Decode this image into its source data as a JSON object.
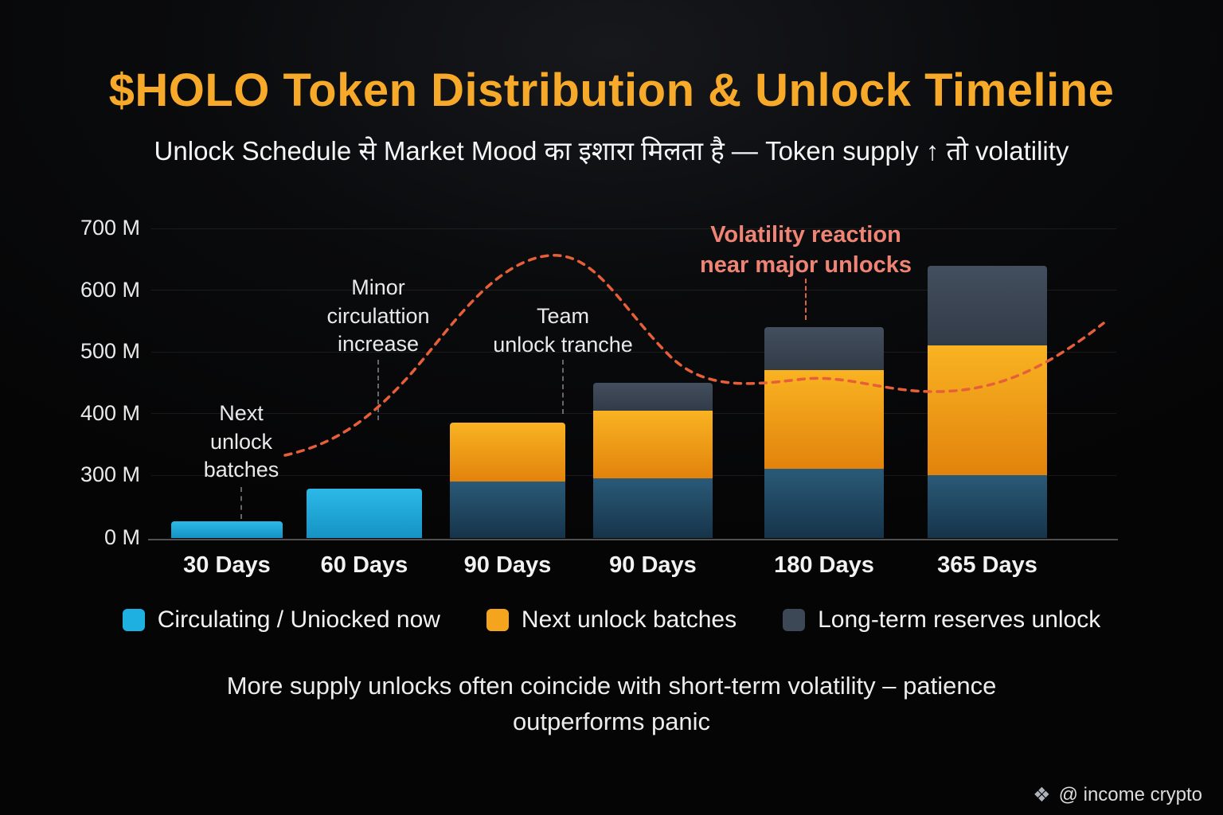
{
  "title": "$HOLO Token Distribution & Unlock Timeline",
  "subtitle": "Unlock Schedule से Market Mood का इशारा मिलता है — Token supply ↑ तो volatility",
  "chart_data": {
    "type": "bar",
    "stacked": true,
    "title": "$HOLO Token Distribution & Unlock Timeline",
    "unit": "M tokens",
    "categories": [
      "30 Days",
      "60 Days",
      "90 Days",
      "90 Days",
      "180 Days",
      "365 Days"
    ],
    "series": [
      {
        "name": "Circulating / Uniocked now",
        "values": [
          80,
          235,
          270,
          285,
          310,
          300
        ]
      },
      {
        "name": "Next unlock batches",
        "values": [
          0,
          0,
          115,
          120,
          160,
          210
        ]
      },
      {
        "name": "Long-term reserves unlock",
        "values": [
          0,
          0,
          0,
          45,
          70,
          130
        ]
      }
    ],
    "stack_totals": [
      80,
      235,
      385,
      450,
      540,
      640
    ],
    "y_ticks": [
      {
        "label": "700 M",
        "value": 700
      },
      {
        "label": "600 M",
        "value": 600
      },
      {
        "label": "500 M",
        "value": 500
      },
      {
        "label": "400 M",
        "value": 400
      },
      {
        "label": "300 M",
        "value": 300
      },
      {
        "label": "0 M",
        "value": 0
      }
    ],
    "ylim": [
      0,
      700
    ],
    "grid": true,
    "legend_position": "bottom",
    "annotations": [
      {
        "id": "next-unlock",
        "lines": [
          "Next",
          "unlock",
          "batches"
        ]
      },
      {
        "id": "minor-circulation",
        "lines": [
          "Minor",
          "circulattion",
          "increase"
        ]
      },
      {
        "id": "team-unlock",
        "lines": [
          "Team",
          "unlock tranche"
        ]
      },
      {
        "id": "volatility",
        "lines": [
          "Volatility reaction",
          "near major unlocks"
        ]
      }
    ],
    "trend_line": "dashed volatility reaction curve peaking near major unlocks"
  },
  "colors": {
    "title_gold": "#f7a92a",
    "cyan": [
      "#2cb9e8",
      "#1593c4"
    ],
    "cyan_dark": [
      "#2a5a78",
      "#16344a"
    ],
    "orange": [
      "#f9b322",
      "#e2830c"
    ],
    "slate": [
      "#434e5e",
      "#323b48"
    ],
    "curve": "#e65f38",
    "volatility_text": "#f08474"
  },
  "legend": [
    {
      "label": "Circulating / Uniocked now",
      "swatch": "#1fb0e2"
    },
    {
      "label": "Next unlock batches",
      "swatch": "#f5a51d"
    },
    {
      "label": "Long-term reserves unlock",
      "swatch": "#3d4856"
    }
  ],
  "note": {
    "line1": "More supply unlocks often coincide with short-term volatility – patience",
    "line2": "outperforms panic"
  },
  "footer": {
    "handle": "@ income crypto"
  }
}
